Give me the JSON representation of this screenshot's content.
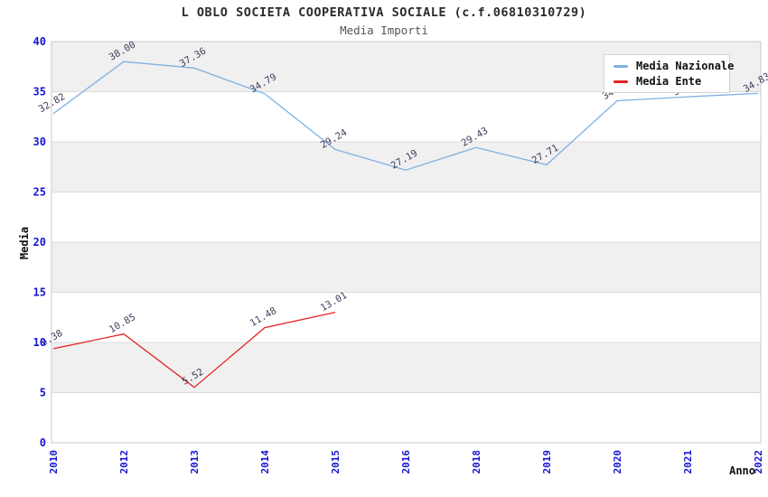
{
  "header": {
    "title": "L OBLO SOCIETA COOPERATIVA SOCIALE (c.f.06810310729)",
    "subtitle": "Media Importi"
  },
  "chart_data": {
    "type": "line",
    "title": "L OBLO SOCIETA COOPERATIVA SOCIALE (c.f.06810310729)",
    "subtitle": "Media Importi",
    "xlabel": "Anno",
    "ylabel": "Media",
    "ylim": [
      0,
      40
    ],
    "yticks": [
      0,
      5,
      10,
      15,
      20,
      25,
      30,
      35,
      40
    ],
    "categories": [
      "2010",
      "2012",
      "2013",
      "2014",
      "2015",
      "2016",
      "2018",
      "2019",
      "2020",
      "2021",
      "2022"
    ],
    "series": [
      {
        "name": "Media Nazionale",
        "color": "#7fb0e2",
        "values": [
          32.82,
          38.0,
          37.36,
          34.79,
          29.24,
          27.19,
          29.43,
          27.71,
          34.1,
          34.5,
          34.83
        ],
        "labels": [
          "32.82",
          "38.00",
          "37.36",
          "34.79",
          "29.24",
          "27.19",
          "29.43",
          "27.71",
          "34.10",
          "34.50",
          "34.83"
        ]
      },
      {
        "name": "Media Ente",
        "color": "#e62222",
        "values": [
          9.38,
          10.85,
          5.52,
          11.48,
          13.01
        ],
        "labels": [
          "9.38",
          "10.85",
          "5.52",
          "11.48",
          "13.01"
        ]
      }
    ],
    "legend": {
      "position": "top-right"
    },
    "grid": {
      "bands": true
    },
    "style": {
      "band_color": "#f0f0f0",
      "band_alt_color": "#ffffff",
      "grid_color": "#dcdcdc",
      "border_color": "#c9c9c9",
      "tick_label_color": "#1515d0",
      "data_label_color": "#3d3d5c"
    }
  }
}
